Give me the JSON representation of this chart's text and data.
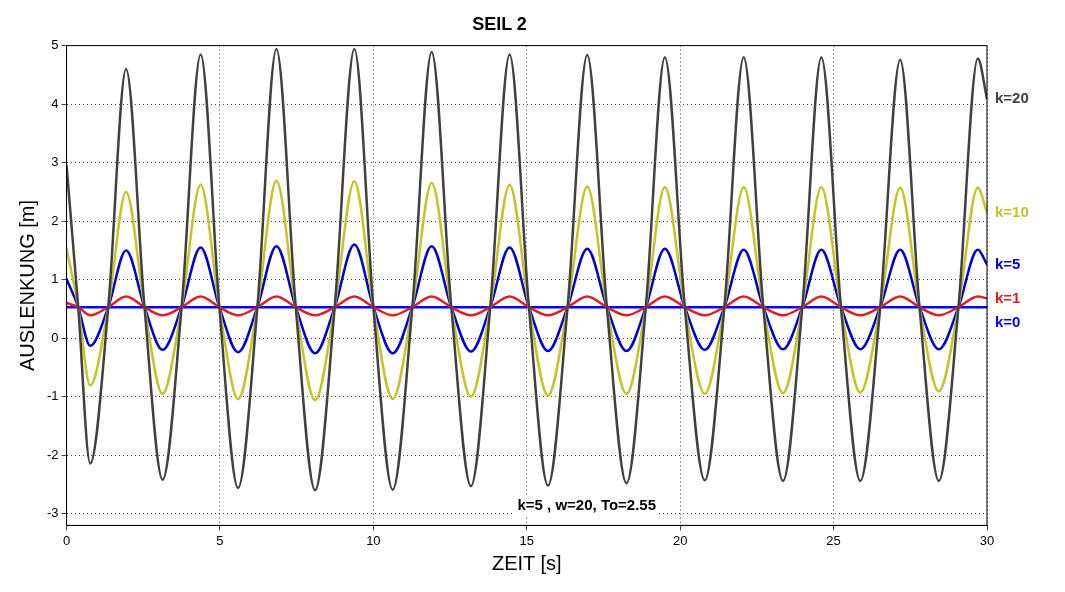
{
  "chart_data": {
    "type": "line",
    "title": "SEIL 2",
    "xlabel": "ZEIT [s]",
    "ylabel": "AUSLENKUNG [m]",
    "x": [
      0,
      0.38,
      0.77,
      1.36,
      1.94,
      2.54,
      3.13,
      3.75,
      4.37,
      4.98,
      5.59,
      6.22,
      6.84,
      7.47,
      8.1,
      8.74,
      9.38,
      10.0,
      10.63,
      11.27,
      11.9,
      12.54,
      13.18,
      13.81,
      14.44,
      15.07,
      15.69,
      16.33,
      16.97,
      17.61,
      18.25,
      18.88,
      19.5,
      20.15,
      20.8,
      21.44,
      22.07,
      22.71,
      23.35,
      23.98,
      24.6,
      25.24,
      25.87,
      26.52,
      27.17,
      27.8,
      28.43,
      29.07,
      29.7,
      30
    ],
    "series": [
      {
        "name": "k=20",
        "color": "#404040",
        "values": [
          2.95,
          0.53,
          -2.14,
          0.53,
          4.6,
          0.53,
          -2.42,
          0.53,
          4.85,
          0.53,
          -2.56,
          0.53,
          4.94,
          0.53,
          -2.6,
          0.53,
          4.94,
          0.53,
          -2.59,
          0.53,
          4.89,
          0.53,
          -2.53,
          0.53,
          4.85,
          0.53,
          -2.52,
          0.53,
          4.84,
          0.53,
          -2.48,
          0.53,
          4.8,
          0.53,
          -2.43,
          0.53,
          4.8,
          0.53,
          -2.44,
          0.53,
          4.8,
          0.53,
          -2.44,
          0.53,
          4.76,
          0.53,
          -2.44,
          0.53,
          4.78,
          4.09
        ]
      },
      {
        "name": "k=10",
        "color": "#c4c424",
        "values": [
          1.54,
          0.53,
          -0.81,
          0.53,
          2.5,
          0.53,
          -0.95,
          0.53,
          2.62,
          0.53,
          -1.04,
          0.53,
          2.69,
          0.53,
          -1.06,
          0.53,
          2.68,
          0.53,
          -1.04,
          0.53,
          2.65,
          0.53,
          -1.0,
          0.53,
          2.62,
          0.53,
          -0.98,
          0.53,
          2.59,
          0.53,
          -0.95,
          0.53,
          2.58,
          0.53,
          -0.95,
          0.53,
          2.58,
          0.53,
          -0.94,
          0.53,
          2.58,
          0.53,
          -0.93,
          0.53,
          2.57,
          0.53,
          -0.91,
          0.53,
          2.57,
          2.15
        ]
      },
      {
        "name": "k=5",
        "color": "#0000d8",
        "values": [
          1.01,
          0.53,
          -0.13,
          0.53,
          1.5,
          0.53,
          -0.2,
          0.53,
          1.55,
          0.53,
          -0.24,
          0.53,
          1.57,
          0.53,
          -0.26,
          0.53,
          1.6,
          0.53,
          -0.26,
          0.53,
          1.57,
          0.53,
          -0.23,
          0.53,
          1.55,
          0.53,
          -0.22,
          0.53,
          1.53,
          0.53,
          -0.22,
          0.53,
          1.53,
          0.53,
          -0.2,
          0.53,
          1.51,
          0.53,
          -0.19,
          0.53,
          1.51,
          0.53,
          -0.19,
          0.53,
          1.51,
          0.53,
          -0.19,
          0.53,
          1.51,
          1.26
        ]
      },
      {
        "name": "k=1",
        "color": "#e02020",
        "values": [
          0.6,
          0.53,
          0.39,
          0.53,
          0.71,
          0.53,
          0.39,
          0.53,
          0.71,
          0.53,
          0.39,
          0.53,
          0.71,
          0.53,
          0.39,
          0.53,
          0.71,
          0.53,
          0.39,
          0.53,
          0.71,
          0.53,
          0.39,
          0.53,
          0.71,
          0.53,
          0.39,
          0.53,
          0.71,
          0.53,
          0.39,
          0.53,
          0.71,
          0.53,
          0.39,
          0.53,
          0.71,
          0.53,
          0.39,
          0.53,
          0.71,
          0.53,
          0.39,
          0.53,
          0.71,
          0.53,
          0.39,
          0.53,
          0.71,
          0.68
        ]
      },
      {
        "name": "k=0",
        "color": "#0000ff",
        "x": [
          0,
          30
        ],
        "values": [
          0.53,
          0.53
        ]
      }
    ],
    "xlim": [
      0,
      30
    ],
    "xticks": [
      0,
      5,
      10,
      15,
      20,
      25,
      30
    ],
    "ylim": [
      -3.2,
      5
    ],
    "yticks": [
      -3,
      -2,
      -1,
      0,
      1,
      2,
      3,
      4,
      5
    ],
    "grid": true,
    "line_style": "solid",
    "annotations": [
      "k=5 , w=20, To=2.55"
    ]
  }
}
